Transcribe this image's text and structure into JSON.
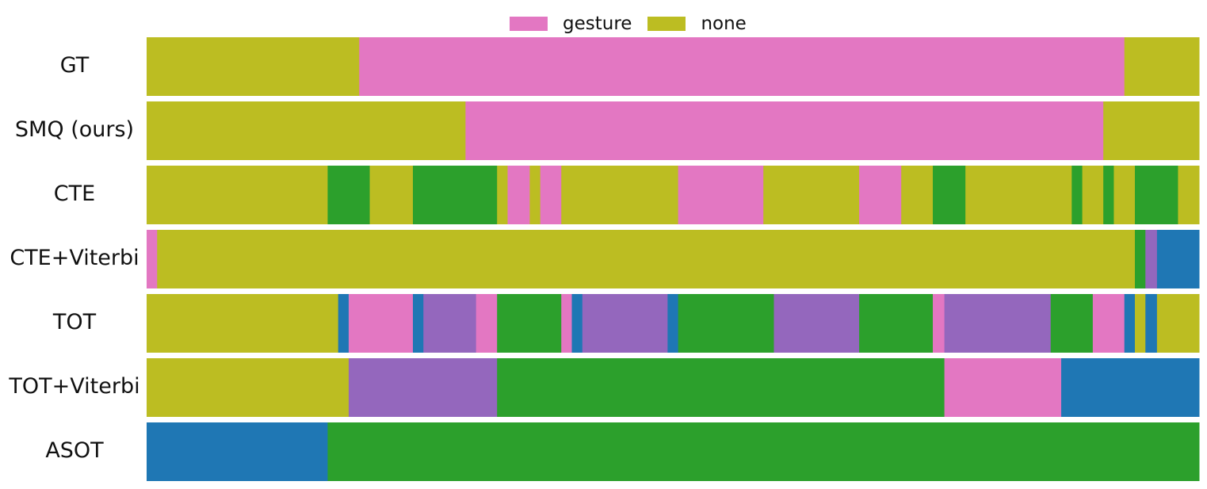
{
  "chart_data": {
    "type": "bar",
    "legend_position": "top-center",
    "legend": [
      {
        "label": "gesture",
        "color": "#e377c2"
      },
      {
        "label": "none",
        "color": "#bcbd22"
      }
    ],
    "x_range": [
      0,
      100
    ],
    "rows": [
      {
        "label": "GT",
        "segments": [
          {
            "start": 0,
            "end": 20.2,
            "color": "#bcbd22"
          },
          {
            "start": 20.2,
            "end": 92.9,
            "color": "#e377c2"
          },
          {
            "start": 92.9,
            "end": 100,
            "color": "#bcbd22"
          }
        ]
      },
      {
        "label": "SMQ (ours)",
        "segments": [
          {
            "start": 0,
            "end": 30.3,
            "color": "#bcbd22"
          },
          {
            "start": 30.3,
            "end": 90.9,
            "color": "#e377c2"
          },
          {
            "start": 90.9,
            "end": 100,
            "color": "#bcbd22"
          }
        ]
      },
      {
        "label": "CTE",
        "segments": [
          {
            "start": 0,
            "end": 17.2,
            "color": "#bcbd22"
          },
          {
            "start": 17.2,
            "end": 21.2,
            "color": "#2ca02c"
          },
          {
            "start": 21.2,
            "end": 25.3,
            "color": "#bcbd22"
          },
          {
            "start": 25.3,
            "end": 33.3,
            "color": "#2ca02c"
          },
          {
            "start": 33.3,
            "end": 34.3,
            "color": "#bcbd22"
          },
          {
            "start": 34.3,
            "end": 36.4,
            "color": "#e377c2"
          },
          {
            "start": 36.4,
            "end": 37.4,
            "color": "#bcbd22"
          },
          {
            "start": 37.4,
            "end": 39.4,
            "color": "#e377c2"
          },
          {
            "start": 39.4,
            "end": 50.5,
            "color": "#bcbd22"
          },
          {
            "start": 50.5,
            "end": 58.6,
            "color": "#e377c2"
          },
          {
            "start": 58.6,
            "end": 67.7,
            "color": "#bcbd22"
          },
          {
            "start": 67.7,
            "end": 71.7,
            "color": "#e377c2"
          },
          {
            "start": 71.7,
            "end": 74.7,
            "color": "#bcbd22"
          },
          {
            "start": 74.7,
            "end": 77.8,
            "color": "#2ca02c"
          },
          {
            "start": 77.8,
            "end": 87.9,
            "color": "#bcbd22"
          },
          {
            "start": 87.9,
            "end": 88.9,
            "color": "#2ca02c"
          },
          {
            "start": 88.9,
            "end": 90.9,
            "color": "#bcbd22"
          },
          {
            "start": 90.9,
            "end": 91.9,
            "color": "#2ca02c"
          },
          {
            "start": 91.9,
            "end": 93.9,
            "color": "#bcbd22"
          },
          {
            "start": 93.9,
            "end": 98.0,
            "color": "#2ca02c"
          },
          {
            "start": 98.0,
            "end": 100,
            "color": "#bcbd22"
          }
        ]
      },
      {
        "label": "CTE+Viterbi",
        "segments": [
          {
            "start": 0,
            "end": 1.0,
            "color": "#e377c2"
          },
          {
            "start": 1.0,
            "end": 93.9,
            "color": "#bcbd22"
          },
          {
            "start": 93.9,
            "end": 94.9,
            "color": "#2ca02c"
          },
          {
            "start": 94.9,
            "end": 96.0,
            "color": "#9467bd"
          },
          {
            "start": 96.0,
            "end": 100,
            "color": "#1f77b4"
          }
        ]
      },
      {
        "label": "TOT",
        "segments": [
          {
            "start": 0,
            "end": 18.2,
            "color": "#bcbd22"
          },
          {
            "start": 18.2,
            "end": 19.2,
            "color": "#1f77b4"
          },
          {
            "start": 19.2,
            "end": 25.3,
            "color": "#e377c2"
          },
          {
            "start": 25.3,
            "end": 26.3,
            "color": "#1f77b4"
          },
          {
            "start": 26.3,
            "end": 31.3,
            "color": "#9467bd"
          },
          {
            "start": 31.3,
            "end": 33.3,
            "color": "#e377c2"
          },
          {
            "start": 33.3,
            "end": 39.4,
            "color": "#2ca02c"
          },
          {
            "start": 39.4,
            "end": 40.4,
            "color": "#e377c2"
          },
          {
            "start": 40.4,
            "end": 41.4,
            "color": "#1f77b4"
          },
          {
            "start": 41.4,
            "end": 49.5,
            "color": "#9467bd"
          },
          {
            "start": 49.5,
            "end": 50.5,
            "color": "#1f77b4"
          },
          {
            "start": 50.5,
            "end": 59.6,
            "color": "#2ca02c"
          },
          {
            "start": 59.6,
            "end": 67.7,
            "color": "#9467bd"
          },
          {
            "start": 67.7,
            "end": 74.7,
            "color": "#2ca02c"
          },
          {
            "start": 74.7,
            "end": 75.8,
            "color": "#e377c2"
          },
          {
            "start": 75.8,
            "end": 85.9,
            "color": "#9467bd"
          },
          {
            "start": 85.9,
            "end": 89.9,
            "color": "#2ca02c"
          },
          {
            "start": 89.9,
            "end": 92.9,
            "color": "#e377c2"
          },
          {
            "start": 92.9,
            "end": 93.9,
            "color": "#1f77b4"
          },
          {
            "start": 93.9,
            "end": 94.9,
            "color": "#bcbd22"
          },
          {
            "start": 94.9,
            "end": 96.0,
            "color": "#1f77b4"
          },
          {
            "start": 96.0,
            "end": 100,
            "color": "#bcbd22"
          }
        ]
      },
      {
        "label": "TOT+Viterbi",
        "segments": [
          {
            "start": 0,
            "end": 19.2,
            "color": "#bcbd22"
          },
          {
            "start": 19.2,
            "end": 33.3,
            "color": "#9467bd"
          },
          {
            "start": 33.3,
            "end": 75.8,
            "color": "#2ca02c"
          },
          {
            "start": 75.8,
            "end": 86.9,
            "color": "#e377c2"
          },
          {
            "start": 86.9,
            "end": 100,
            "color": "#1f77b4"
          }
        ]
      },
      {
        "label": "ASOT",
        "segments": [
          {
            "start": 0,
            "end": 17.2,
            "color": "#1f77b4"
          },
          {
            "start": 17.2,
            "end": 100,
            "color": "#2ca02c"
          }
        ]
      }
    ]
  }
}
